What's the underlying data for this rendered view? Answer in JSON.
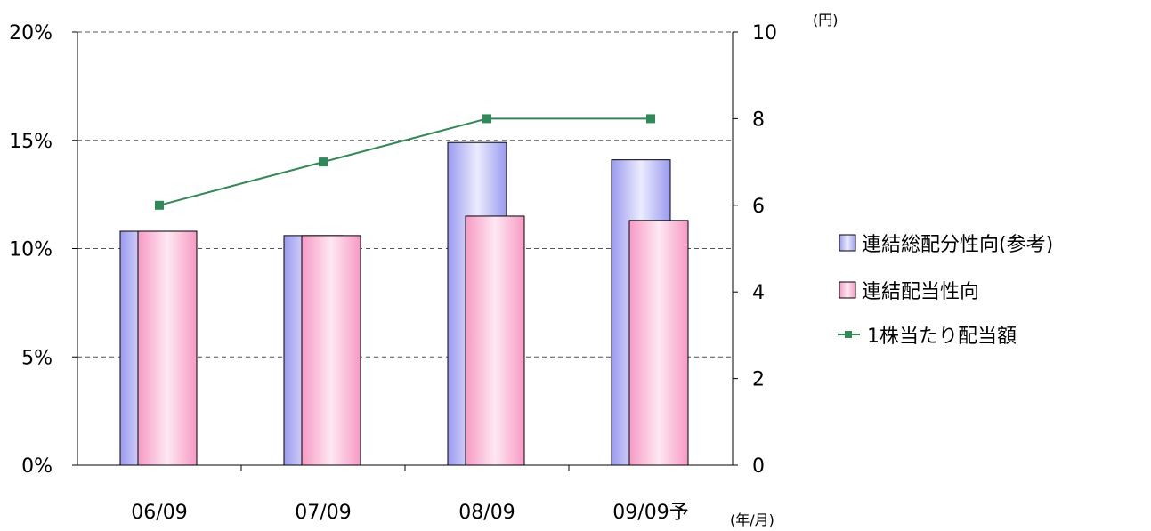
{
  "chart_data": {
    "type": "bar",
    "categories": [
      "06/09",
      "07/09",
      "08/09",
      "09/09予"
    ],
    "series": [
      {
        "name": "連結総配分性向(参考)",
        "type": "bar",
        "axis": "left",
        "values": [
          10.8,
          10.6,
          14.9,
          14.1
        ]
      },
      {
        "name": "連結配当性向",
        "type": "bar",
        "axis": "left",
        "values": [
          10.8,
          10.6,
          11.5,
          11.3
        ]
      },
      {
        "name": "1株当たり配当額",
        "type": "line",
        "axis": "right",
        "values": [
          6,
          7,
          8,
          8
        ]
      }
    ],
    "y_left": {
      "ylim": [
        0,
        20
      ],
      "ticks": [
        "0%",
        "5%",
        "10%",
        "15%",
        "20%"
      ]
    },
    "y_right": {
      "ylim": [
        0,
        10
      ],
      "ticks": [
        "0",
        "2",
        "4",
        "6",
        "8",
        "10"
      ],
      "unit": "(円)"
    },
    "x_unit": "(年/月)",
    "grid": true,
    "legend": "right",
    "colors": {
      "bar1_edge": "#9a9af0",
      "bar1_center": "#ececfc",
      "bar2_edge": "#f79ac4",
      "bar2_center": "#fde8f2",
      "line": "#2e8b57",
      "marker": "#2e8b57",
      "grid": "#555555"
    }
  }
}
